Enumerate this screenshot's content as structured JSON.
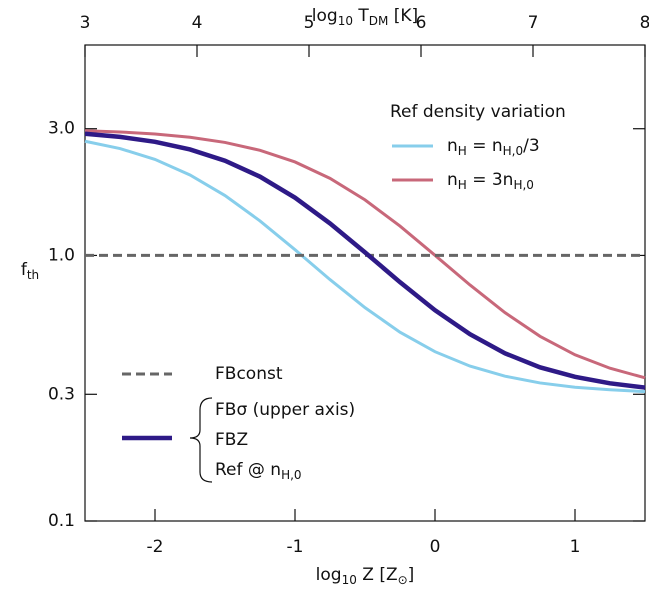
{
  "chart_data": {
    "type": "line",
    "x_label": [
      "log",
      "10",
      " Z [Z",
      "⊙",
      "]"
    ],
    "x2_label": [
      "log",
      "10",
      " T",
      "DM",
      " [K]"
    ],
    "y_label": [
      "f",
      "th"
    ],
    "log_y": true,
    "xlim": [
      -2.5,
      1.5
    ],
    "xticks": [
      -2,
      -1,
      0,
      1
    ],
    "x2lim": [
      3,
      8
    ],
    "x2ticks": [
      3,
      4,
      5,
      6,
      7,
      8
    ],
    "ylim": [
      0.1,
      6.2
    ],
    "yticks": [
      0.1,
      0.3,
      {
        "value": 1.0,
        "label": "1.0"
      },
      {
        "value": 3.0,
        "label": "3.0"
      }
    ],
    "legend_title": "Ref density variation",
    "x": [
      -2.5,
      -2.25,
      -2,
      -1.75,
      -1.5,
      -1.25,
      -1,
      -0.75,
      -0.5,
      -0.25,
      0,
      0.25,
      0.5,
      0.75,
      1,
      1.25,
      1.5
    ],
    "series": [
      {
        "name": [
          [
            "n",
            "H",
            " = n",
            "H,0",
            "/3"
          ]
        ],
        "color": "#87ceeb",
        "width": 3,
        "legend": "upper",
        "values": [
          2.691,
          2.526,
          2.299,
          2.009,
          1.681,
          1.349,
          1.051,
          0.811,
          0.636,
          0.514,
          0.434,
          0.383,
          0.351,
          0.331,
          0.319,
          0.312,
          0.307
        ]
      },
      {
        "name": [
          [
            "n",
            "H",
            " = 3n",
            "H,0"
          ]
        ],
        "color": "#c8687a",
        "width": 3,
        "legend": "upper",
        "values": [
          2.949,
          2.917,
          2.866,
          2.786,
          2.664,
          2.488,
          2.249,
          1.951,
          1.619,
          1.29,
          1.001,
          0.774,
          0.609,
          0.496,
          0.4225,
          0.376,
          0.346
        ]
      },
      {
        "name": [
          [
            "FBconst"
          ]
        ],
        "color": "#666666",
        "width": 3,
        "dashed": true,
        "legend": "lower",
        "values": [
          1,
          1,
          1,
          1,
          1,
          1,
          1,
          1,
          1,
          1,
          1,
          1,
          1,
          1,
          1,
          1,
          1
        ]
      },
      {
        "name": [
          [
            "FBσ (upper axis)"
          ],
          [
            "FBZ"
          ],
          [
            "Ref @ n",
            "H,0"
          ]
        ],
        "color": "#2e1a87",
        "width": 4.5,
        "legend": "lower",
        "values": [
          2.872,
          2.795,
          2.678,
          2.507,
          2.274,
          1.98,
          1.65,
          1.32,
          1.027,
          0.793,
          0.622,
          0.505,
          0.428,
          0.379,
          0.349,
          0.33,
          0.318
        ]
      }
    ]
  }
}
